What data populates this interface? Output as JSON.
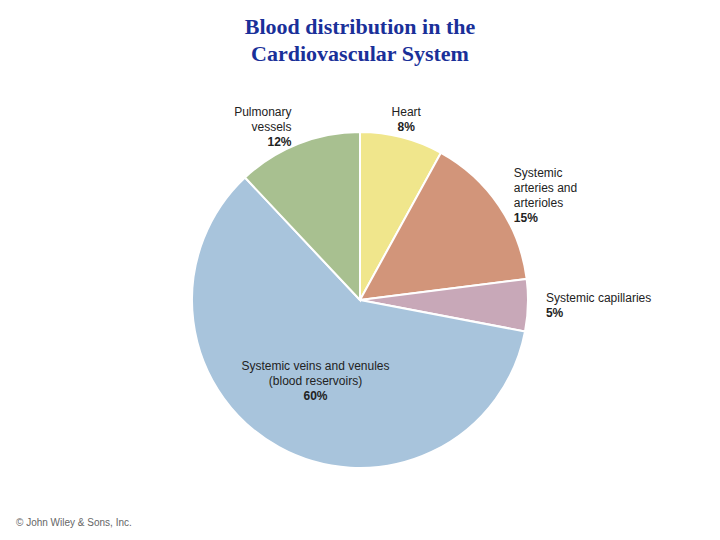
{
  "chart_data": {
    "type": "pie",
    "title": "Blood distribution in the\nCardiovascular System",
    "categories": [
      "Heart",
      "Systemic\narteries and\narterioles",
      "Systemic capillaries",
      "Systemic veins and venules\n(blood reservoirs)",
      "Pulmonary\nvessels"
    ],
    "values": [
      8,
      15,
      5,
      60,
      12
    ],
    "value_labels": [
      "8%",
      "15%",
      "5%",
      "60%",
      "12%"
    ],
    "data_labels": true,
    "colors": [
      "#F0E68C",
      "#D2957A",
      "#C8A8B8",
      "#A8C4DC",
      "#A8C090"
    ],
    "annotations": [
      "© John Wiley & Sons, Inc."
    ]
  }
}
